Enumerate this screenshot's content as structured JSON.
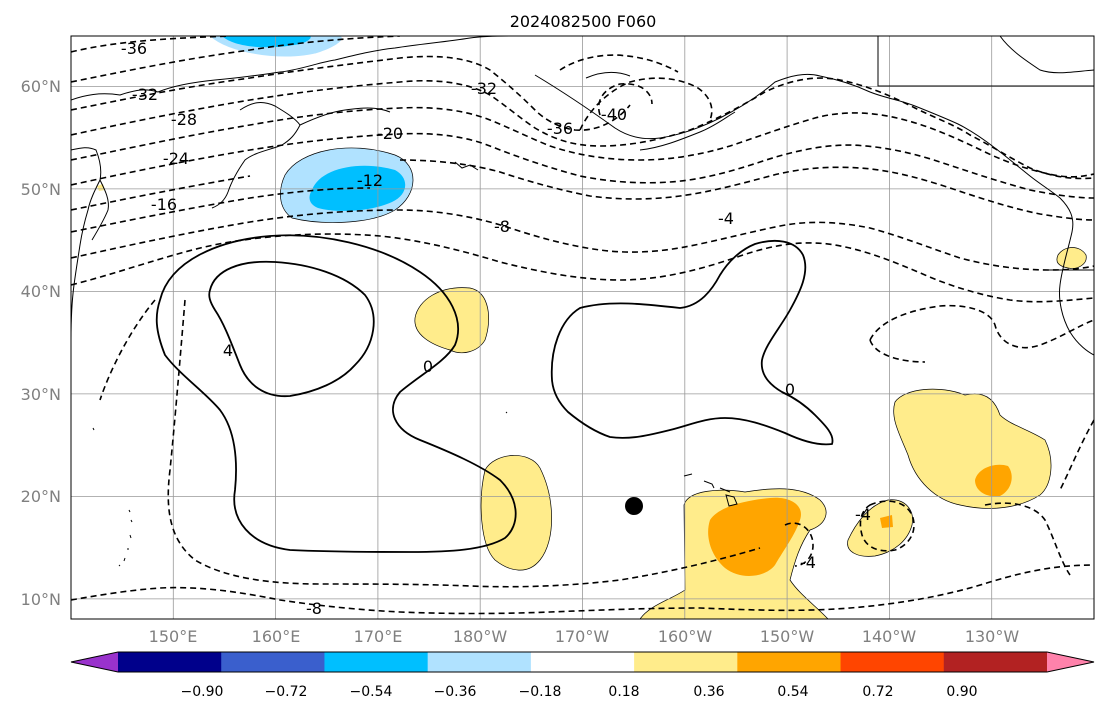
{
  "title": "2024082500 F060",
  "lat_labels": [
    "60°N",
    "50°N",
    "40°N",
    "30°N",
    "20°N",
    "10°N"
  ],
  "lon_labels": [
    "150°E",
    "160°E",
    "170°E",
    "180°W",
    "170°W",
    "160°W",
    "150°W",
    "140°W",
    "130°W"
  ],
  "colorbar": {
    "ticks": [
      "−0.90",
      "−0.72",
      "−0.54",
      "−0.36",
      "−0.18",
      "0.18",
      "0.36",
      "0.54",
      "0.72",
      "0.90"
    ],
    "colors": [
      "#9932CC",
      "#00008B",
      "#3A5FCD",
      "#00BFFF",
      "#B0E2FF",
      "#FFFFFF",
      "#FFEC8B",
      "#FFA500",
      "#FF4500",
      "#B22222",
      "#FF82AB"
    ]
  },
  "contour_labels": [
    "-36",
    "-32",
    "-28",
    "-24",
    "-20",
    "-16",
    "-12",
    "-8",
    "-4",
    "-40",
    "-36",
    "-32",
    "4",
    "0",
    "0",
    "-4",
    "-4",
    "-8"
  ],
  "marker": "typhoon-center-dot"
}
